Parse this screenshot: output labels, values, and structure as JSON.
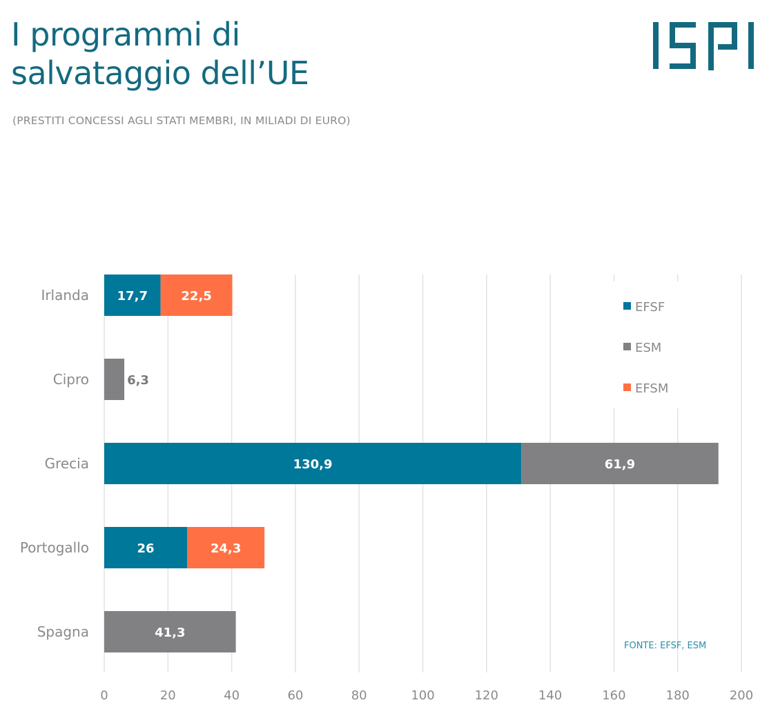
{
  "header": {
    "title_lines": [
      "I programmi di",
      "salvataggio dell’UE"
    ],
    "subtitle": "(PRESTITI CONCESSI AGLI STATI MEMBRI, IN MILIADI DI EURO)",
    "logo_text": "ISPI"
  },
  "colors": {
    "brand": "#136a80",
    "EFSF": "#00789a",
    "ESM": "#818184",
    "EFSM": "#ff7144",
    "grid": "#e2e2e2",
    "category_label": "#8a8a8a",
    "source": "#2a8fa6"
  },
  "chart_data": {
    "type": "bar",
    "orientation": "horizontal",
    "stacked": true,
    "title": "I programmi di salvataggio dell’UE",
    "subtitle": "(PRESTITI CONCESSI AGLI STATI MEMBRI, IN MILIADI DI EURO)",
    "categories": [
      "Irlanda",
      "Cipro",
      "Grecia",
      "Portogallo",
      "Spagna"
    ],
    "series": [
      {
        "name": "EFSF",
        "values": [
          17.7,
          null,
          130.9,
          26,
          null
        ],
        "labels": [
          "17,7",
          null,
          "130,9",
          "26",
          null
        ]
      },
      {
        "name": "ESM",
        "values": [
          null,
          6.3,
          61.9,
          null,
          41.3
        ],
        "labels": [
          null,
          "6,3",
          "61,9",
          null,
          "41,3"
        ]
      },
      {
        "name": "EFSM",
        "values": [
          22.5,
          null,
          null,
          24.3,
          null
        ],
        "labels": [
          "22,5",
          null,
          null,
          "24,3",
          null
        ]
      }
    ],
    "stack_order": [
      "EFSF",
      "ESM",
      "EFSM"
    ],
    "xlim": [
      0,
      200
    ],
    "xticks": [
      0,
      20,
      40,
      60,
      80,
      100,
      120,
      140,
      160,
      180,
      200
    ],
    "xtick_labels": [
      "0",
      "20",
      "40",
      "60",
      "80",
      "100",
      "120",
      "140",
      "160",
      "180",
      "200"
    ],
    "xlabel": "",
    "ylabel": "",
    "grid": "vertical",
    "legend": {
      "entries": [
        "EFSF",
        "ESM",
        "EFSM"
      ],
      "placement": "top-right"
    },
    "annotation": "FONTE: EFSF, ESM"
  }
}
